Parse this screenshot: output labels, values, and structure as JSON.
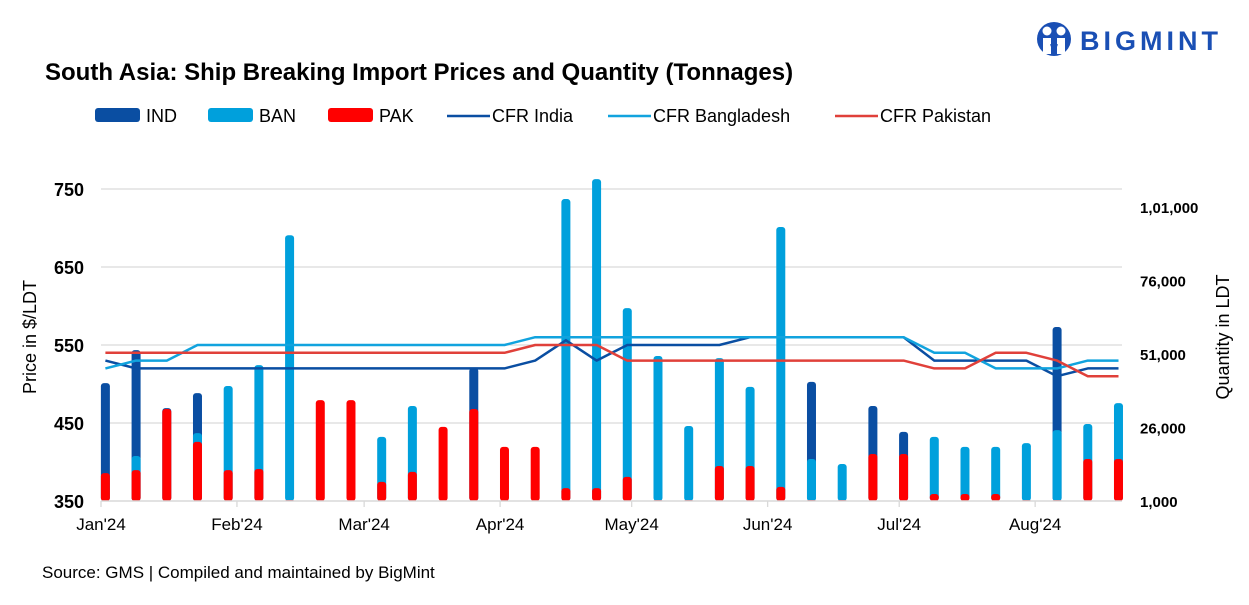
{
  "logo": {
    "text": "BIGMINT",
    "color": "#1a4fb4"
  },
  "source": "Source: GMS | Compiled and maintained by BigMint",
  "chart_data": {
    "type": "bar+line",
    "title": "South Asia: Ship Breaking Import Prices and Quantity (Tonnages)",
    "ylabel": "Price in $/LDT",
    "y2label": "Quantity in LDT",
    "ylim": [
      350,
      750
    ],
    "yticks": [
      350,
      450,
      550,
      650,
      750
    ],
    "yticklabels": [
      "350",
      "450",
      "550",
      "650",
      "750"
    ],
    "y2ticks": [
      1000,
      26000,
      51000,
      76000,
      101000
    ],
    "y2ticklabels": [
      "1,000",
      "26,000",
      "51,000",
      "76,000",
      "1,01,000"
    ],
    "xticks": [
      "2024-01-01",
      "2024-02-01",
      "2024-03-01",
      "2024-04-01",
      "2024-05-01",
      "2024-06-01",
      "2024-07-01",
      "2024-08-01"
    ],
    "xticklabels": [
      "Jan'24",
      "Feb'24",
      "Mar'24",
      "Apr'24",
      "May'24",
      "Jun'24",
      "Jul'24",
      "Aug'24"
    ],
    "grid": true,
    "legend": "top",
    "x": [
      "2024-01-02",
      "2024-01-09",
      "2024-01-16",
      "2024-01-23",
      "2024-01-30",
      "2024-02-06",
      "2024-02-13",
      "2024-02-20",
      "2024-02-27",
      "2024-03-05",
      "2024-03-12",
      "2024-03-19",
      "2024-03-26",
      "2024-04-02",
      "2024-04-09",
      "2024-04-16",
      "2024-04-23",
      "2024-04-30",
      "2024-05-07",
      "2024-05-14",
      "2024-05-21",
      "2024-05-28",
      "2024-06-04",
      "2024-06-11",
      "2024-06-18",
      "2024-06-25",
      "2024-07-02",
      "2024-07-09",
      "2024-07-16",
      "2024-07-23",
      "2024-07-30",
      "2024-08-06",
      "2024-08-13",
      "2024-08-20"
    ],
    "bar_series": [
      {
        "name": "IND",
        "color": "#0a4ea2",
        "axis": "right",
        "values": [
          41100,
          52300,
          32600,
          37700,
          0,
          0,
          0,
          0,
          0,
          0,
          0,
          0,
          46200,
          0,
          0,
          0,
          0,
          0,
          0,
          0,
          0,
          0,
          0,
          41500,
          0,
          33300,
          24500,
          0,
          0,
          0,
          0,
          60200,
          0,
          0
        ]
      },
      {
        "name": "BAN",
        "color": "#00a0dc",
        "axis": "right",
        "values": [
          0,
          16300,
          0,
          24100,
          40100,
          47200,
          91400,
          0,
          0,
          22800,
          33300,
          0,
          0,
          0,
          0,
          103700,
          110500,
          66600,
          50300,
          26500,
          49600,
          39800,
          94200,
          15300,
          13600,
          0,
          0,
          22800,
          19400,
          19400,
          20700,
          25100,
          27200,
          34300
        ]
      },
      {
        "name": "PAK",
        "color": "#ff0000",
        "axis": "right",
        "values": [
          10500,
          11500,
          32300,
          21100,
          11500,
          11900,
          1300,
          35300,
          35300,
          7500,
          10900,
          26200,
          32300,
          19400,
          19400,
          5400,
          5400,
          9200,
          1300,
          1300,
          12900,
          12900,
          5800,
          1300,
          1300,
          17000,
          17000,
          3400,
          3400,
          3400,
          1300,
          1300,
          15300,
          15300
        ]
      }
    ],
    "line_series": [
      {
        "name": "CFR India",
        "color": "#0a4ea2",
        "axis": "left",
        "values": [
          530,
          520,
          520,
          520,
          520,
          520,
          520,
          520,
          520,
          520,
          520,
          520,
          520,
          520,
          530,
          556,
          530,
          550,
          550,
          550,
          550,
          560,
          560,
          560,
          560,
          560,
          560,
          530,
          530,
          530,
          530,
          510,
          520,
          520
        ]
      },
      {
        "name": "CFR Bangladesh",
        "color": "#11a3de",
        "axis": "left",
        "values": [
          520,
          530,
          530,
          550,
          550,
          550,
          550,
          550,
          550,
          550,
          550,
          550,
          550,
          550,
          560,
          560,
          560,
          560,
          560,
          560,
          560,
          560,
          560,
          560,
          560,
          560,
          560,
          540,
          540,
          520,
          520,
          520,
          530,
          530
        ]
      },
      {
        "name": "CFR Pakistan",
        "color": "#e0403a",
        "axis": "left",
        "values": [
          540,
          540,
          540,
          540,
          540,
          540,
          540,
          540,
          540,
          540,
          540,
          540,
          540,
          540,
          550,
          550,
          550,
          530,
          530,
          530,
          530,
          530,
          530,
          530,
          530,
          530,
          530,
          520,
          520,
          540,
          540,
          530,
          510,
          510
        ]
      }
    ]
  }
}
